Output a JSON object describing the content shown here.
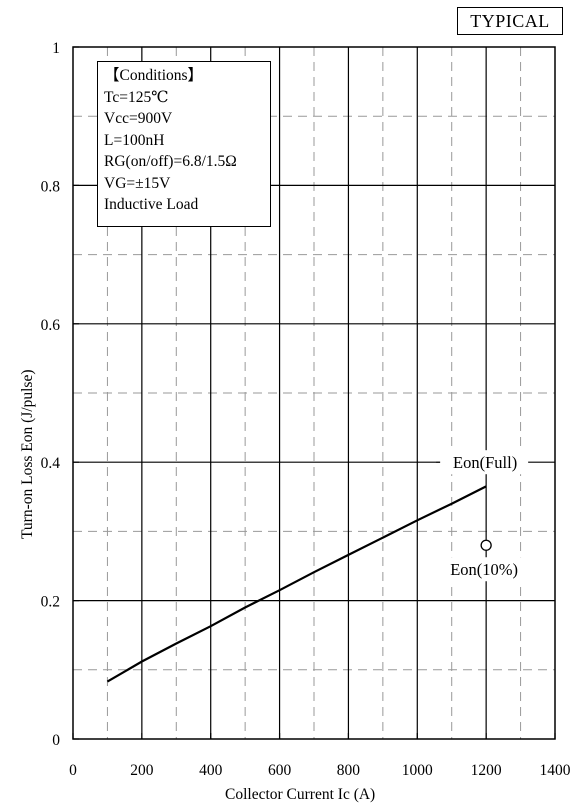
{
  "badge": "TYPICAL",
  "conditions": {
    "title": "【Conditions】",
    "lines": [
      "Tc=125℃",
      "Vcc=900V",
      "L=100nH",
      "RG(on/off)=6.8/1.5Ω",
      "VG=±15V",
      "Inductive Load"
    ]
  },
  "chart_data": {
    "type": "line",
    "xlabel": "Collector Current    Ic (A)",
    "ylabel": "Turn-on Loss    Eon (J/pulse)",
    "xlim": [
      0,
      1400
    ],
    "ylim": [
      0,
      1
    ],
    "xticks": [
      0,
      200,
      400,
      600,
      800,
      1000,
      1200,
      1400
    ],
    "xtick_labels": [
      "0",
      "200",
      "400",
      "600",
      "800",
      "1000",
      "1200",
      "1400"
    ],
    "yticks": [
      0,
      0.2,
      0.4,
      0.6,
      0.8,
      1
    ],
    "ytick_labels": [
      "0",
      "0.2",
      "0.4",
      "0.6",
      "0.8",
      "1"
    ],
    "grid": {
      "major": true,
      "minor_dashed": true
    },
    "series": [
      {
        "name": "Eon(Full)",
        "type": "line",
        "x": [
          100,
          200,
          300,
          400,
          500,
          600,
          700,
          800,
          900,
          1000,
          1100,
          1200
        ],
        "y": [
          0.083,
          0.112,
          0.138,
          0.163,
          0.19,
          0.215,
          0.241,
          0.266,
          0.291,
          0.316,
          0.34,
          0.365
        ]
      },
      {
        "name": "Eon(10%)",
        "type": "scatter",
        "marker": "open-circle",
        "x": [
          1200
        ],
        "y": [
          0.28
        ]
      }
    ]
  }
}
